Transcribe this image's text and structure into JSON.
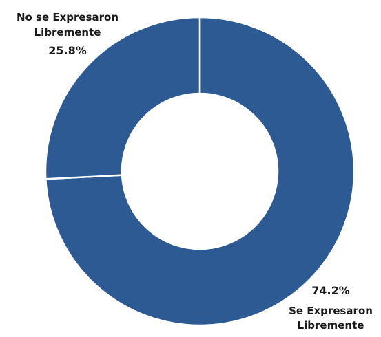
{
  "chart_data": {
    "type": "pie",
    "donut": true,
    "color": "#2e5a94",
    "separator_color": "#ffffff",
    "slices": [
      {
        "label_lines": [
          "Se Expresaron",
          "Libremente"
        ],
        "value": 74.2,
        "value_label": "74.2%"
      },
      {
        "label_lines": [
          "No se Expresaron",
          "Libremente"
        ],
        "value": 25.8,
        "value_label": "25.8%"
      }
    ]
  }
}
